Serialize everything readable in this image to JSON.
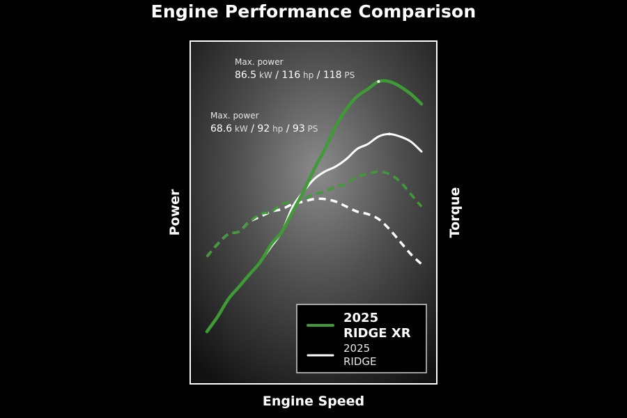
{
  "chart_data": {
    "type": "line",
    "title": "Engine Performance Comparison",
    "xlabel": "Engine Speed",
    "ylabel": "Power",
    "y2label": "Torque",
    "x": [
      0,
      5,
      10,
      15,
      20,
      25,
      30,
      35,
      40,
      45,
      50,
      55,
      60,
      65,
      70,
      75,
      80,
      85,
      90,
      95,
      100
    ],
    "xlim": [
      0,
      100
    ],
    "ylim": [
      0,
      100
    ],
    "grid": false,
    "legend_position": "bottom-right",
    "series": [
      {
        "name": "2025 RIDGE XR",
        "metric": "power",
        "style": "solid",
        "color": "#3f9b35",
        "values": [
          0,
          6,
          13,
          18,
          23,
          28,
          35,
          40,
          48,
          56,
          65,
          73,
          82,
          89,
          94,
          97,
          100,
          100,
          98,
          95,
          91
        ]
      },
      {
        "name": "2025 RIDGE",
        "metric": "power",
        "style": "solid",
        "color": "#ffffff",
        "values": [
          0,
          6,
          13,
          18,
          23,
          28,
          34,
          40,
          50,
          56,
          61,
          64,
          66,
          69,
          73,
          75,
          78,
          79,
          78,
          76,
          72
        ]
      },
      {
        "name": "2025 RIDGE XR",
        "metric": "torque",
        "style": "dashed",
        "color": "#3f9b35",
        "values": [
          30,
          35,
          39,
          40,
          44,
          47,
          48,
          51,
          52,
          53,
          55,
          56,
          58,
          59,
          62,
          63,
          64,
          63,
          60,
          55,
          50
        ]
      },
      {
        "name": "2025 RIDGE",
        "metric": "torque",
        "style": "dashed",
        "color": "#ffffff",
        "values": [
          30,
          35,
          39,
          40,
          44,
          46,
          48,
          49,
          51,
          52,
          53,
          53,
          52,
          50,
          48,
          47,
          45,
          41,
          36,
          31,
          27
        ]
      }
    ],
    "annotations": [
      {
        "series": 0,
        "point": 16,
        "line1": "Max. power",
        "line2_parts": [
          "86.5",
          "kW",
          "/ 116",
          "hp",
          "/ 118",
          "PS"
        ]
      },
      {
        "series": 1,
        "point": 17,
        "line1": "Max. power",
        "line2_parts": [
          "68.6",
          "kW",
          "/ 92",
          "hp",
          "/ 93",
          "PS"
        ]
      }
    ],
    "legend": [
      {
        "line1": "2025",
        "line2": "RIDGE XR",
        "color": "#3f9b35"
      },
      {
        "line1": "2025",
        "line2": "RIDGE",
        "color": "#ffffff"
      }
    ]
  }
}
